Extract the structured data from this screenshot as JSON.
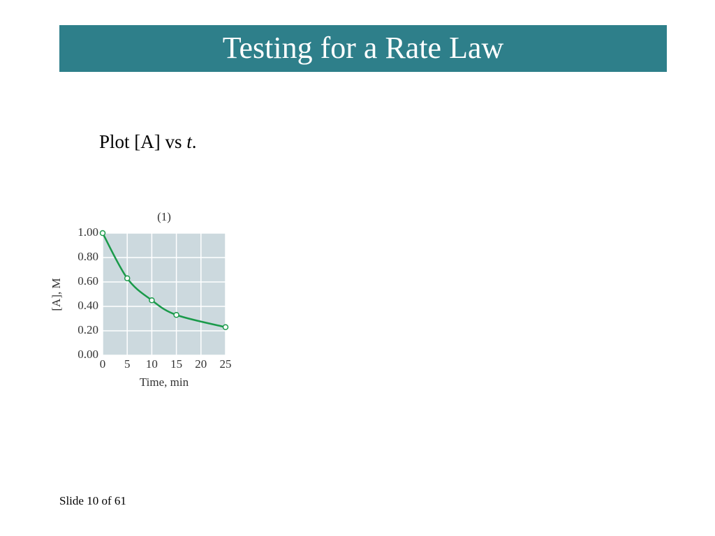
{
  "header": {
    "title": "Testing for a Rate Law"
  },
  "body": {
    "parts": [
      "Plot [A] vs ",
      "t",
      "."
    ]
  },
  "footer": {
    "text": "Slide 10 of 61"
  },
  "chart_data": {
    "type": "line",
    "title": "(1)",
    "x_label": "Time, min",
    "y_label": "[A], M",
    "x": [
      0,
      5,
      10,
      15,
      25
    ],
    "values": [
      1.0,
      0.63,
      0.45,
      0.33,
      0.23
    ],
    "color": "#1a9a4a",
    "xlim": [
      0,
      25
    ],
    "xticks": [
      0,
      5,
      10,
      15,
      20,
      25
    ],
    "ylim": [
      0,
      1
    ],
    "yticks": [
      {
        "value": 0,
        "label": "0.00"
      },
      {
        "value": 0.2,
        "label": "0.20"
      },
      {
        "value": 0.4,
        "label": "0.40"
      },
      {
        "value": 0.6,
        "label": "0.60"
      },
      {
        "value": 0.8,
        "label": "0.80"
      },
      {
        "value": 1,
        "label": "1.00"
      }
    ],
    "grid": true
  }
}
